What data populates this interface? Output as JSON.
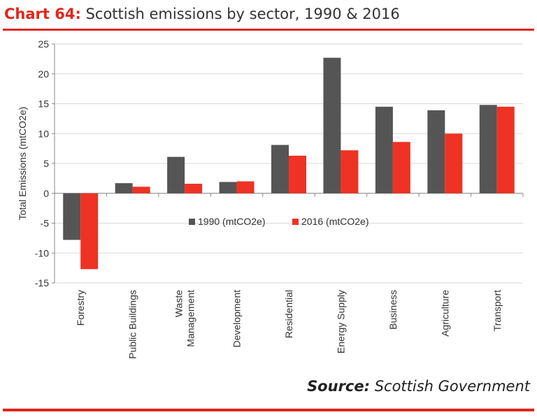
{
  "header": {
    "chart_number": "Chart 64:",
    "title": "Scottish emissions by sector, 1990 & 2016"
  },
  "footer": {
    "source_label": "Source:",
    "source_text": "Scottish Government"
  },
  "colors": {
    "accent": "#e1261c",
    "series_1990": "#555555",
    "series_2016": "#ee3224",
    "gridline": "#d9d9d9",
    "axis_text": "#333333"
  },
  "chart_data": {
    "type": "bar",
    "title": "Scottish emissions by sector, 1990 & 2016",
    "ylabel": "Total Emissions (mtCO2e)",
    "xlabel": "",
    "ylim": [
      -15,
      25
    ],
    "yticks": [
      -15,
      -10,
      -5,
      0,
      5,
      10,
      15,
      20,
      25
    ],
    "ytick_labels": [
      "-15",
      "-10",
      "-5",
      "0",
      "5",
      "10",
      "15",
      "20",
      "25"
    ],
    "grid": true,
    "legend_position": "center",
    "categories": [
      [
        "Forestry"
      ],
      [
        "Public Buildings"
      ],
      [
        "Waste",
        "Management"
      ],
      [
        "Development"
      ],
      [
        "Residential"
      ],
      [
        "Energy Supply"
      ],
      [
        "Business"
      ],
      [
        "Agriculture"
      ],
      [
        "Transport"
      ]
    ],
    "series": [
      {
        "name": "1990 (mtCO2e)",
        "color": "#555555",
        "values": [
          -7.8,
          1.7,
          6.1,
          1.9,
          8.1,
          22.7,
          14.5,
          13.9,
          14.8
        ]
      },
      {
        "name": "2016 (mtCO2e)",
        "color": "#ee3224",
        "values": [
          -12.7,
          1.1,
          1.6,
          2.0,
          6.3,
          7.2,
          8.6,
          10.0,
          14.5
        ]
      }
    ]
  }
}
